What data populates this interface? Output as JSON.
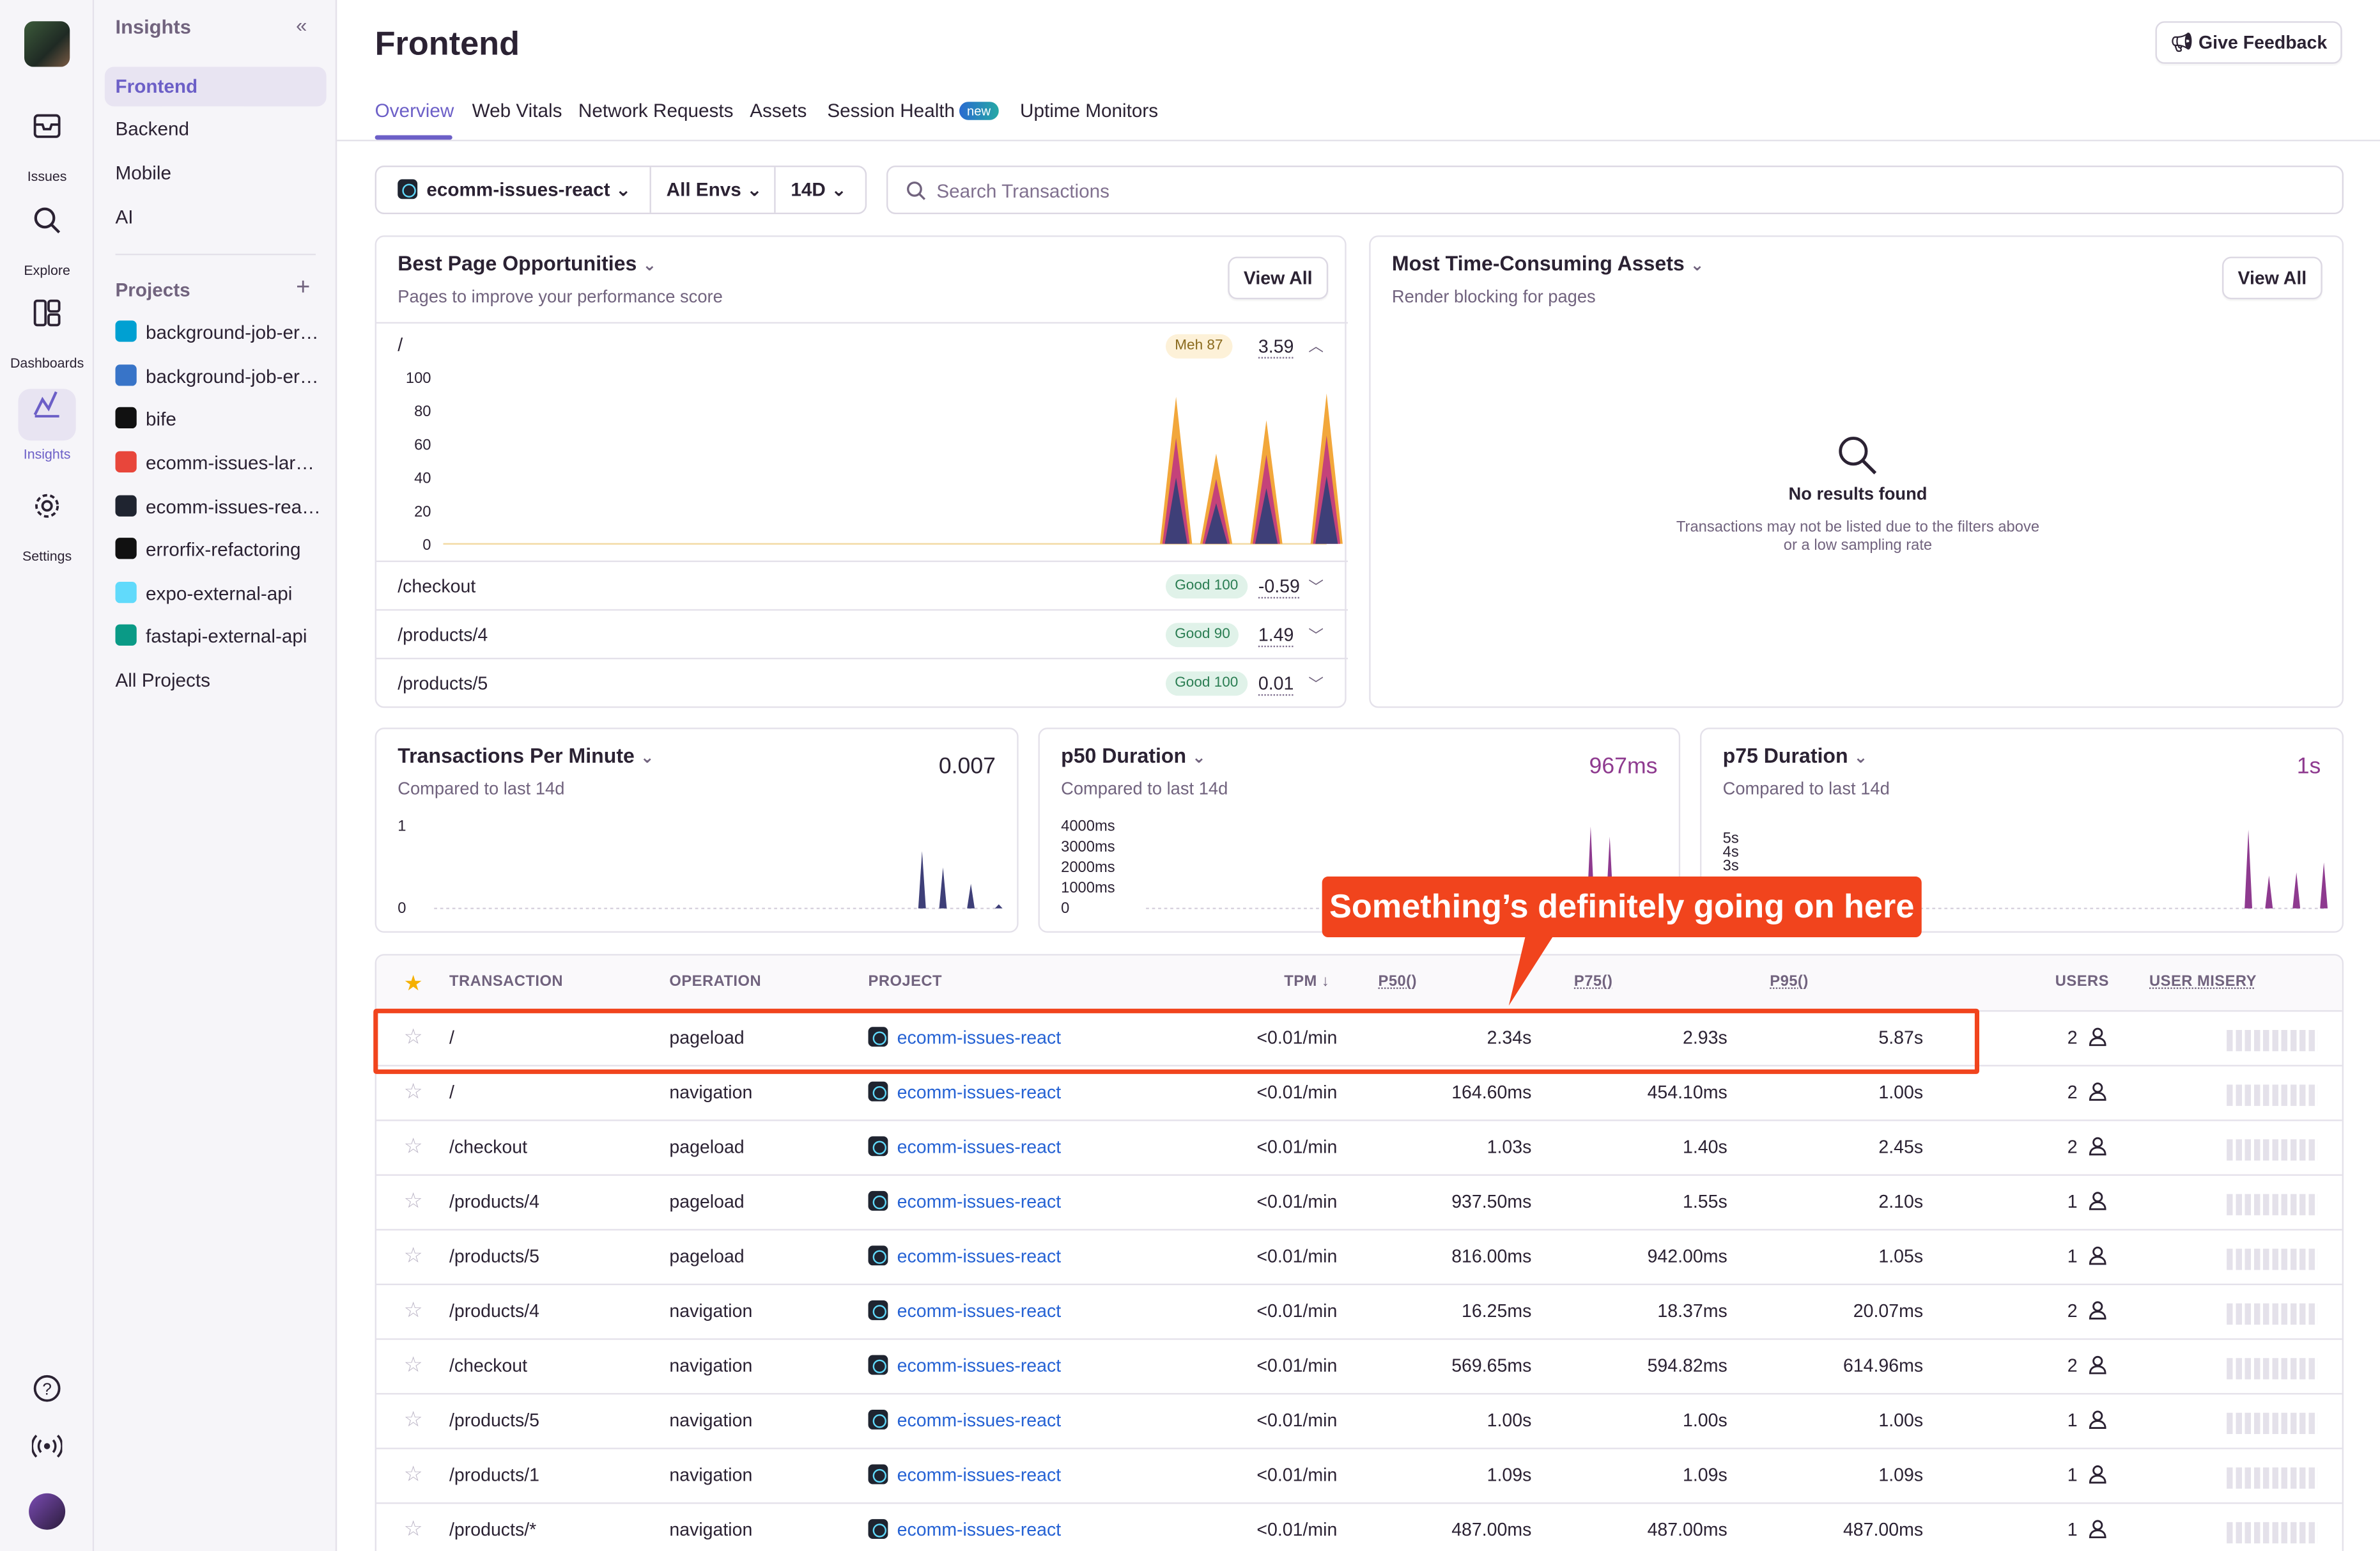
{
  "nav": {
    "rail": [
      {
        "label": "Issues",
        "icon": "inbox-icon"
      },
      {
        "label": "Explore",
        "icon": "search-icon"
      },
      {
        "label": "Dashboards",
        "icon": "dashboard-icon"
      },
      {
        "label": "Insights",
        "icon": "insights-icon"
      },
      {
        "label": "Settings",
        "icon": "gear-icon"
      }
    ],
    "section_title": "Insights",
    "items": [
      "Frontend",
      "Backend",
      "Mobile",
      "AI"
    ],
    "projects_title": "Projects",
    "projects": [
      {
        "name": "background-job-er…",
        "color": "#00a0d2"
      },
      {
        "name": "background-job-er…",
        "color": "#3874c8"
      },
      {
        "name": "bife",
        "color": "#111111"
      },
      {
        "name": "ecomm-issues-lar…",
        "color": "#e8463b"
      },
      {
        "name": "ecomm-issues-rea…",
        "color": "#1f2430"
      },
      {
        "name": "errorfix-refactoring",
        "color": "#111111"
      },
      {
        "name": "expo-external-api",
        "color": "#61dafb"
      },
      {
        "name": "fastapi-external-api",
        "color": "#0a9a86"
      }
    ],
    "all_projects": "All Projects"
  },
  "header": {
    "title": "Frontend",
    "feedback": "Give Feedback",
    "tabs": [
      "Overview",
      "Web Vitals",
      "Network Requests",
      "Assets",
      "Session Health",
      "Uptime Monitors"
    ],
    "new_badge": "new"
  },
  "filters": {
    "project": "ecomm-issues-react",
    "env": "All Envs",
    "period": "14D",
    "search_placeholder": "Search Transactions"
  },
  "best_pages": {
    "title": "Best Page Opportunities",
    "subtitle": "Pages to improve your performance score",
    "view_all": "View All",
    "rows": [
      {
        "path": "/",
        "status": "Meh 87",
        "score": "3.59",
        "kind": "meh"
      },
      {
        "path": "/checkout",
        "status": "Good 100",
        "score": "-0.59",
        "kind": "good"
      },
      {
        "path": "/products/4",
        "status": "Good 90",
        "score": "1.49",
        "kind": "good"
      },
      {
        "path": "/products/5",
        "status": "Good 100",
        "score": "0.01",
        "kind": "good"
      }
    ]
  },
  "assets": {
    "title": "Most Time-Consuming Assets",
    "subtitle": "Render blocking for pages",
    "view_all": "View All",
    "empty_title": "No results found",
    "empty_text": "Transactions may not be listed due to the filters above or a low sampling rate"
  },
  "metrics": [
    {
      "title": "Transactions Per Minute",
      "sub": "Compared to last 14d",
      "value": "0.007",
      "color": "#2b2233"
    },
    {
      "title": "p50 Duration",
      "sub": "Compared to last 14d",
      "value": "967ms",
      "color": "#8e3a8f"
    },
    {
      "title": "p75 Duration",
      "sub": "Compared to last 14d",
      "value": "1s",
      "color": "#8e3a8f"
    }
  ],
  "chart_data": [
    {
      "type": "area",
      "title": "Best Page Opportunities",
      "ylim": [
        0,
        100
      ],
      "y_ticks": [
        "100",
        "80",
        "60",
        "40",
        "20",
        "0"
      ],
      "series": [
        {
          "values": [
            0,
            0,
            0,
            0,
            0,
            0,
            0,
            0,
            0,
            0,
            0,
            0,
            0,
            0,
            0,
            0,
            0,
            0,
            0,
            0,
            0,
            0,
            0,
            0,
            0,
            0,
            0,
            0,
            0,
            0,
            0,
            0,
            0,
            0,
            0,
            0,
            0,
            0,
            0,
            0,
            0,
            0,
            0,
            0,
            0,
            0,
            0,
            0,
            0,
            0,
            0,
            0,
            0,
            0,
            0,
            0,
            0,
            0,
            0,
            0,
            0,
            0,
            0,
            0,
            0,
            0,
            0,
            0,
            0,
            0,
            0,
            0,
            0,
            88,
            0,
            0,
            0,
            54,
            0,
            0,
            0,
            0,
            74,
            0,
            0,
            0,
            0,
            0,
            90
          ]
        }
      ]
    },
    {
      "type": "line",
      "title": "Transactions Per Minute",
      "ylim": [
        0,
        1
      ],
      "y_ticks": [
        "1",
        "0"
      ],
      "series": [
        {
          "values": [
            0,
            0,
            0,
            0,
            0,
            0,
            0,
            0,
            0,
            0,
            0,
            0,
            0,
            0,
            0,
            0,
            0,
            0,
            0,
            0,
            0,
            0,
            0,
            0,
            0,
            0,
            0,
            0,
            0,
            0,
            0,
            0,
            0,
            0,
            0,
            0,
            0,
            0,
            0,
            0,
            0,
            0,
            0,
            0,
            0,
            0,
            0,
            0,
            0,
            0,
            0,
            0,
            0,
            0,
            0,
            0,
            0,
            0,
            0,
            0,
            0,
            0,
            0,
            0,
            0,
            0,
            0,
            0,
            0,
            0,
            0.7,
            0,
            0,
            0.5,
            0,
            0,
            0,
            0.3,
            0,
            0,
            0,
            0.05
          ]
        }
      ]
    },
    {
      "type": "line",
      "title": "p50 Duration",
      "ylim": [
        0,
        4000
      ],
      "y_ticks": [
        "4000ms",
        "3000ms",
        "2000ms",
        "1000ms",
        "0"
      ],
      "series": [
        {
          "values": [
            0,
            0,
            0,
            0,
            0,
            0,
            0,
            0,
            0,
            0,
            0,
            0,
            0,
            0,
            0,
            0,
            0,
            0,
            0,
            0,
            0,
            0,
            0,
            0,
            0,
            0,
            0,
            0,
            0,
            0,
            0,
            0,
            0,
            0,
            0,
            0,
            0,
            0,
            0,
            0,
            0,
            0,
            0,
            0,
            0,
            0,
            0,
            0,
            0,
            0,
            0,
            0,
            0,
            0,
            0,
            0,
            0,
            0,
            0,
            0,
            0,
            0,
            0,
            0,
            0,
            0,
            0,
            0,
            0,
            0,
            4000,
            0,
            0,
            3500,
            0,
            0,
            0,
            1000,
            0,
            0,
            0,
            500
          ]
        }
      ]
    },
    {
      "type": "line",
      "title": "p75 Duration",
      "ylim": [
        0,
        5
      ],
      "y_ticks": [
        "5s",
        "4s",
        "3s"
      ],
      "series": [
        {
          "values": [
            0,
            0,
            0,
            0,
            0,
            0,
            0,
            0,
            0,
            0,
            0,
            0,
            0,
            0,
            0,
            0,
            0,
            0,
            0,
            0,
            0,
            0,
            0,
            0,
            0,
            0,
            0,
            0,
            0,
            0,
            0,
            0,
            0,
            0,
            0,
            0,
            0,
            0,
            0,
            0,
            0,
            0,
            0,
            0,
            0,
            0,
            0,
            0,
            0,
            0,
            0,
            0,
            0,
            0,
            0,
            0,
            0,
            0,
            0,
            0,
            0,
            0,
            0,
            0,
            0,
            0,
            0,
            0,
            0,
            0,
            4.8,
            0,
            0,
            2,
            0,
            0,
            0,
            2.2,
            0,
            0,
            0,
            2.8
          ]
        }
      ]
    }
  ],
  "table": {
    "headers": {
      "transaction": "TRANSACTION",
      "operation": "OPERATION",
      "project": "PROJECT",
      "tpm": "TPM ↓",
      "p50": "P50()",
      "p75": "P75()",
      "p95": "P95()",
      "users": "USERS",
      "misery": "USER MISERY"
    },
    "rows": [
      {
        "t": "/",
        "op": "pageload",
        "proj": "ecomm-issues-react",
        "tpm": "<0.01/min",
        "p50": "2.34s",
        "p75": "2.93s",
        "p95": "5.87s",
        "users": "2"
      },
      {
        "t": "/",
        "op": "navigation",
        "proj": "ecomm-issues-react",
        "tpm": "<0.01/min",
        "p50": "164.60ms",
        "p75": "454.10ms",
        "p95": "1.00s",
        "users": "2"
      },
      {
        "t": "/checkout",
        "op": "pageload",
        "proj": "ecomm-issues-react",
        "tpm": "<0.01/min",
        "p50": "1.03s",
        "p75": "1.40s",
        "p95": "2.45s",
        "users": "2"
      },
      {
        "t": "/products/4",
        "op": "pageload",
        "proj": "ecomm-issues-react",
        "tpm": "<0.01/min",
        "p50": "937.50ms",
        "p75": "1.55s",
        "p95": "2.10s",
        "users": "1"
      },
      {
        "t": "/products/5",
        "op": "pageload",
        "proj": "ecomm-issues-react",
        "tpm": "<0.01/min",
        "p50": "816.00ms",
        "p75": "942.00ms",
        "p95": "1.05s",
        "users": "1"
      },
      {
        "t": "/products/4",
        "op": "navigation",
        "proj": "ecomm-issues-react",
        "tpm": "<0.01/min",
        "p50": "16.25ms",
        "p75": "18.37ms",
        "p95": "20.07ms",
        "users": "2"
      },
      {
        "t": "/checkout",
        "op": "navigation",
        "proj": "ecomm-issues-react",
        "tpm": "<0.01/min",
        "p50": "569.65ms",
        "p75": "594.82ms",
        "p95": "614.96ms",
        "users": "2"
      },
      {
        "t": "/products/5",
        "op": "navigation",
        "proj": "ecomm-issues-react",
        "tpm": "<0.01/min",
        "p50": "1.00s",
        "p75": "1.00s",
        "p95": "1.00s",
        "users": "1"
      },
      {
        "t": "/products/1",
        "op": "navigation",
        "proj": "ecomm-issues-react",
        "tpm": "<0.01/min",
        "p50": "1.09s",
        "p75": "1.09s",
        "p95": "1.09s",
        "users": "1"
      },
      {
        "t": "/products/*",
        "op": "navigation",
        "proj": "ecomm-issues-react",
        "tpm": "<0.01/min",
        "p50": "487.00ms",
        "p75": "487.00ms",
        "p95": "487.00ms",
        "users": "1"
      }
    ]
  },
  "annotation": "Something’s definitely going on here",
  "colors": {
    "accent": "#6c5fc7",
    "link": "#2562d4",
    "annotation": "#f1441d",
    "chart_a": "#f2a73b",
    "chart_b": "#3e3f78"
  }
}
